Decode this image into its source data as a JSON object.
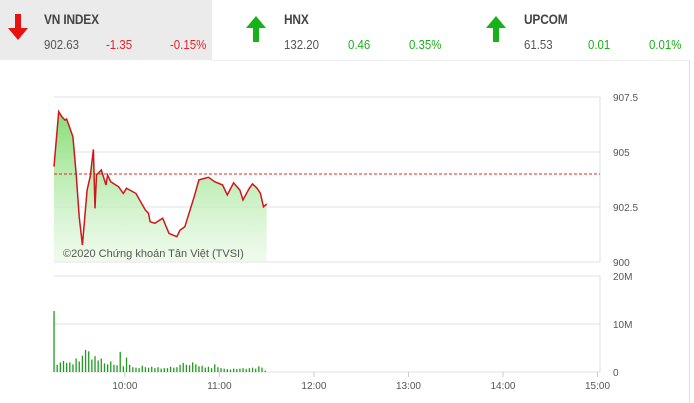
{
  "tickers": [
    {
      "name": "VN INDEX",
      "value": "902.63",
      "change": "-1.35",
      "percent": "-0.15%",
      "direction": "down",
      "color": "#e0242a",
      "icon": "arrow-down-icon"
    },
    {
      "name": "HNX",
      "value": "132.20",
      "change": "0.46",
      "percent": "0.35%",
      "direction": "up",
      "color": "#1aaf1a",
      "icon": "arrow-up-icon"
    },
    {
      "name": "UPCOM",
      "value": "61.53",
      "change": "0.01",
      "percent": "0.01%",
      "direction": "up",
      "color": "#1aaf1a",
      "icon": "arrow-up-icon"
    }
  ],
  "chart_data": {
    "type": "area",
    "watermark": "©2020 Chứng khoán Tân Việt (TVSI)",
    "price": {
      "ylim": [
        900,
        907.5
      ],
      "yticks": [
        "907.5",
        "905",
        "902.5",
        "900"
      ],
      "reference": 904,
      "reference_color": "#e0242a",
      "line_color": "#d0151b",
      "fill_color": "#7fdc6f",
      "points": [
        [
          "09:15",
          904.33
        ],
        [
          "09:18",
          906.83
        ],
        [
          "09:20",
          906.6
        ],
        [
          "09:22",
          906.45
        ],
        [
          "09:23",
          906.5
        ],
        [
          "09:27",
          905.7
        ],
        [
          "09:29",
          904.03
        ],
        [
          "09:31",
          902.06
        ],
        [
          "09:33",
          900.77
        ],
        [
          "09:36",
          903.27
        ],
        [
          "09:38",
          903.88
        ],
        [
          "09:40",
          905.12
        ],
        [
          "09:41",
          902.44
        ],
        [
          "09:42",
          903.95
        ],
        [
          "09:45",
          904.18
        ],
        [
          "09:48",
          903.5
        ],
        [
          "09:49",
          903.95
        ],
        [
          "09:51",
          903.65
        ],
        [
          "09:56",
          903.42
        ],
        [
          "09:59",
          903.12
        ],
        [
          "10:01",
          903.35
        ],
        [
          "10:07",
          903.12
        ],
        [
          "10:13",
          902.36
        ],
        [
          "10:15",
          902.21
        ],
        [
          "10:16",
          901.83
        ],
        [
          "10:19",
          901.76
        ],
        [
          "10:24",
          901.99
        ],
        [
          "10:28",
          901.3
        ],
        [
          "10:33",
          901.15
        ],
        [
          "10:35",
          901.45
        ],
        [
          "10:38",
          901.6
        ],
        [
          "10:44",
          902.97
        ],
        [
          "10:47",
          903.73
        ],
        [
          "10:53",
          903.85
        ],
        [
          "10:57",
          903.65
        ],
        [
          "11:02",
          903.5
        ],
        [
          "11:05",
          903.05
        ],
        [
          "11:09",
          903.6
        ],
        [
          "11:13",
          903.27
        ],
        [
          "11:15",
          902.82
        ],
        [
          "11:19",
          903.35
        ],
        [
          "11:21",
          903.55
        ],
        [
          "11:24",
          903.35
        ],
        [
          "11:26",
          903.12
        ],
        [
          "11:28",
          902.51
        ],
        [
          "11:30",
          902.64
        ]
      ]
    },
    "volume": {
      "ylim": [
        0,
        20
      ],
      "yticks": [
        "20M",
        "10M",
        "0"
      ],
      "bar_color": "#1f9a1f",
      "bars": [
        [
          "09:15",
          12.7
        ],
        [
          "09:17",
          1.5
        ],
        [
          "09:19",
          2.0
        ],
        [
          "09:21",
          2.3
        ],
        [
          "09:23",
          1.9
        ],
        [
          "09:25",
          2.0
        ],
        [
          "09:27",
          1.6
        ],
        [
          "09:29",
          2.8
        ],
        [
          "09:31",
          2.2
        ],
        [
          "09:33",
          3.4
        ],
        [
          "09:35",
          4.6
        ],
        [
          "09:37",
          4.3
        ],
        [
          "09:39",
          2.6
        ],
        [
          "09:41",
          3.3
        ],
        [
          "09:43",
          2.4
        ],
        [
          "09:45",
          2.8
        ],
        [
          "09:47",
          1.8
        ],
        [
          "09:49",
          1.6
        ],
        [
          "09:51",
          2.2
        ],
        [
          "09:53",
          1.5
        ],
        [
          "09:55",
          1.4
        ],
        [
          "09:57",
          4.2
        ],
        [
          "09:59",
          1.2
        ],
        [
          "10:01",
          3.0
        ],
        [
          "10:03",
          1.5
        ],
        [
          "10:05",
          1.0
        ],
        [
          "10:07",
          0.9
        ],
        [
          "10:09",
          0.8
        ],
        [
          "10:11",
          1.3
        ],
        [
          "10:13",
          1.0
        ],
        [
          "10:15",
          0.9
        ],
        [
          "10:17",
          1.1
        ],
        [
          "10:19",
          0.8
        ],
        [
          "10:21",
          1.0
        ],
        [
          "10:23",
          0.7
        ],
        [
          "10:25",
          0.8
        ],
        [
          "10:27",
          0.8
        ],
        [
          "10:29",
          1.1
        ],
        [
          "10:31",
          0.9
        ],
        [
          "10:33",
          1.0
        ],
        [
          "10:35",
          1.5
        ],
        [
          "10:37",
          1.9
        ],
        [
          "10:39",
          1.5
        ],
        [
          "10:41",
          1.4
        ],
        [
          "10:43",
          2.0
        ],
        [
          "10:45",
          1.6
        ],
        [
          "10:47",
          1.2
        ],
        [
          "10:49",
          1.3
        ],
        [
          "10:51",
          0.9
        ],
        [
          "10:53",
          1.1
        ],
        [
          "10:55",
          0.8
        ],
        [
          "10:57",
          1.6
        ],
        [
          "10:59",
          1.0
        ],
        [
          "11:01",
          0.8
        ],
        [
          "11:03",
          0.7
        ],
        [
          "11:05",
          0.6
        ],
        [
          "11:07",
          0.5
        ],
        [
          "11:09",
          0.7
        ],
        [
          "11:11",
          0.6
        ],
        [
          "11:13",
          0.7
        ],
        [
          "11:15",
          0.8
        ],
        [
          "11:17",
          0.6
        ],
        [
          "11:19",
          0.8
        ],
        [
          "11:21",
          0.9
        ],
        [
          "11:23",
          0.7
        ],
        [
          "11:25",
          1.2
        ],
        [
          "11:27",
          0.9
        ],
        [
          "11:29",
          0.3
        ]
      ]
    },
    "xticks": [
      "10:00",
      "11:00",
      "12:00",
      "13:00",
      "14:00",
      "15:00"
    ],
    "xlim": [
      "09:15",
      "15:00"
    ],
    "grid": true
  }
}
